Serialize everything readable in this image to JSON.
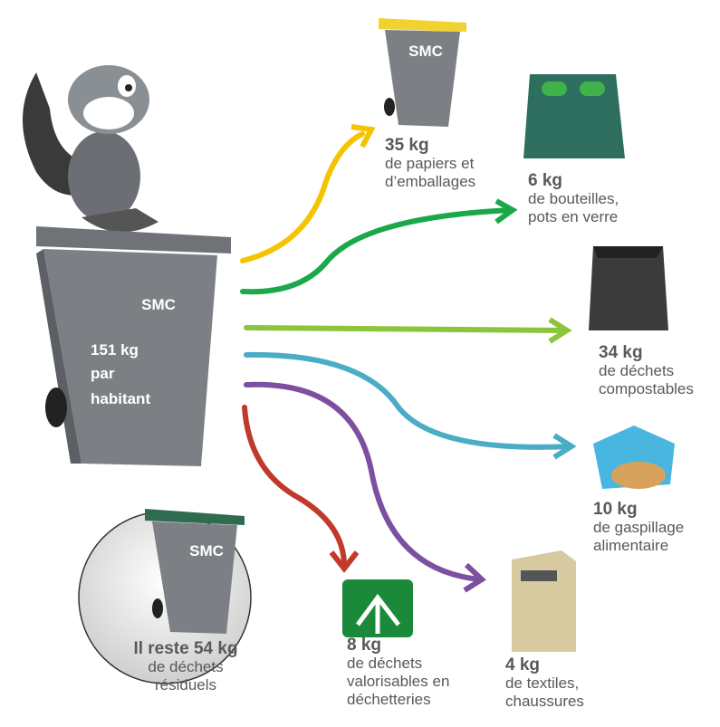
{
  "main_bin": {
    "brand": "SMC",
    "amount": "151 kg",
    "lines": [
      "par",
      "habitant"
    ]
  },
  "flows": [
    {
      "amount": "35 kg",
      "lines": [
        "de papiers et",
        "d’emballages"
      ],
      "bin_brand": "SMC"
    },
    {
      "amount": "6 kg",
      "lines": [
        "de bouteilles,",
        "pots en verre"
      ]
    },
    {
      "amount": "34 kg",
      "lines": [
        "de déchets",
        "compostables"
      ]
    },
    {
      "amount": "10 kg",
      "lines": [
        "de gaspillage",
        "alimentaire"
      ]
    },
    {
      "amount": "4 kg",
      "lines": [
        "de textiles,",
        "chaussures"
      ]
    },
    {
      "amount": "8 kg",
      "lines": [
        "de déchets",
        "valorisables en",
        "déchetteries"
      ]
    }
  ],
  "residual": {
    "brand": "SMC",
    "amount": "Il reste 54 kg",
    "lines": [
      "de déchets",
      "résiduels"
    ]
  }
}
